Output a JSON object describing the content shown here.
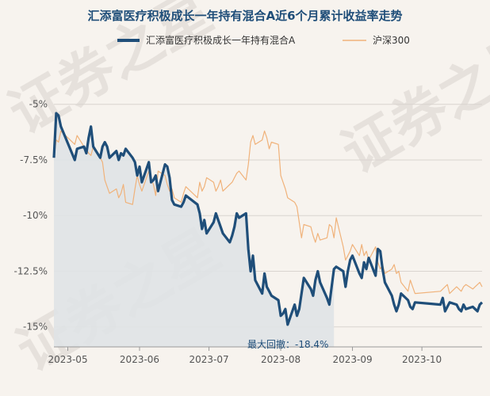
{
  "chart_data": {
    "type": "line",
    "title": "汇添富医疗积极成长一年持有混合A近6个月累计收益率走势",
    "watermark": "证券之星",
    "ylim": [
      -15.9,
      -3.8
    ],
    "yticks": [
      -5,
      -7.5,
      -10,
      -12.5,
      -15
    ],
    "ytick_labels": [
      "-5%",
      "-7.5%",
      "-10%",
      "-12.5%",
      "-15%"
    ],
    "x_range": [
      "2023-04-25",
      "2023-10-27"
    ],
    "xticks": [
      "2023-05-01",
      "2023-06-01",
      "2023-07-01",
      "2023-08-01",
      "2023-09-01",
      "2023-10-01"
    ],
    "xtick_labels": [
      "2023-05",
      "2023-06",
      "2023-07",
      "2023-08",
      "2023-09",
      "2023-10"
    ],
    "baseline": -7.5,
    "legend_position": "top",
    "annotation": {
      "text": "最大回撤：-18.4%"
    },
    "drawdown_range": [
      "2023-04-25",
      "2023-08-24"
    ],
    "series": [
      {
        "name": "汇添富医疗积极成长一年持有混合A",
        "color": "#1f4e79",
        "x": [
          "2023-04-25",
          "2023-04-26",
          "2023-04-27",
          "2023-04-28",
          "2023-05-04",
          "2023-05-05",
          "2023-05-08",
          "2023-05-09",
          "2023-05-10",
          "2023-05-11",
          "2023-05-12",
          "2023-05-15",
          "2023-05-16",
          "2023-05-17",
          "2023-05-18",
          "2023-05-19",
          "2023-05-22",
          "2023-05-23",
          "2023-05-24",
          "2023-05-25",
          "2023-05-26",
          "2023-05-29",
          "2023-05-30",
          "2023-05-31",
          "2023-06-01",
          "2023-06-02",
          "2023-06-05",
          "2023-06-06",
          "2023-06-07",
          "2023-06-08",
          "2023-06-09",
          "2023-06-12",
          "2023-06-13",
          "2023-06-14",
          "2023-06-15",
          "2023-06-16",
          "2023-06-19",
          "2023-06-20",
          "2023-06-21",
          "2023-06-26",
          "2023-06-27",
          "2023-06-28",
          "2023-06-29",
          "2023-06-30",
          "2023-07-03",
          "2023-07-04",
          "2023-07-05",
          "2023-07-06",
          "2023-07-07",
          "2023-07-10",
          "2023-07-11",
          "2023-07-12",
          "2023-07-13",
          "2023-07-14",
          "2023-07-17",
          "2023-07-18",
          "2023-07-19",
          "2023-07-20",
          "2023-07-21",
          "2023-07-24",
          "2023-07-25",
          "2023-07-26",
          "2023-07-27",
          "2023-07-28",
          "2023-07-31",
          "2023-08-01",
          "2023-08-02",
          "2023-08-03",
          "2023-08-04",
          "2023-08-07",
          "2023-08-08",
          "2023-08-09",
          "2023-08-10",
          "2023-08-11",
          "2023-08-14",
          "2023-08-15",
          "2023-08-16",
          "2023-08-17",
          "2023-08-18",
          "2023-08-21",
          "2023-08-22",
          "2023-08-23",
          "2023-08-24",
          "2023-08-25",
          "2023-08-28",
          "2023-08-29",
          "2023-08-30",
          "2023-08-31",
          "2023-09-01",
          "2023-09-04",
          "2023-09-05",
          "2023-09-06",
          "2023-09-07",
          "2023-09-08",
          "2023-09-11",
          "2023-09-12",
          "2023-09-13",
          "2023-09-14",
          "2023-09-15",
          "2023-09-18",
          "2023-09-19",
          "2023-09-20",
          "2023-09-21",
          "2023-09-22",
          "2023-09-25",
          "2023-09-26",
          "2023-09-27",
          "2023-09-28",
          "2023-10-09",
          "2023-10-10",
          "2023-10-11",
          "2023-10-12",
          "2023-10-13",
          "2023-10-16",
          "2023-10-17",
          "2023-10-18",
          "2023-10-19",
          "2023-10-20",
          "2023-10-23",
          "2023-10-24",
          "2023-10-25",
          "2023-10-26",
          "2023-10-27"
        ],
        "values": [
          -7.4,
          -5.4,
          -5.5,
          -6.0,
          -7.5,
          -7.0,
          -6.9,
          -7.2,
          -6.5,
          -6.0,
          -6.9,
          -7.4,
          -6.9,
          -6.7,
          -6.9,
          -7.4,
          -7.1,
          -7.5,
          -7.2,
          -7.3,
          -7.0,
          -7.4,
          -7.6,
          -8.2,
          -7.8,
          -8.5,
          -7.6,
          -8.5,
          -8.4,
          -8.2,
          -8.9,
          -7.7,
          -7.8,
          -8.3,
          -9.3,
          -9.5,
          -9.6,
          -9.4,
          -9.1,
          -9.5,
          -9.9,
          -10.6,
          -10.2,
          -10.8,
          -10.3,
          -9.9,
          -10.2,
          -10.5,
          -10.8,
          -11.2,
          -10.9,
          -10.5,
          -9.9,
          -10.1,
          -9.9,
          -11.5,
          -12.5,
          -11.8,
          -12.9,
          -13.5,
          -12.6,
          -13.2,
          -13.4,
          -13.6,
          -13.8,
          -14.5,
          -14.4,
          -14.2,
          -14.9,
          -14.0,
          -14.5,
          -14.2,
          -13.5,
          -12.8,
          -13.3,
          -13.6,
          -12.9,
          -12.5,
          -13.0,
          -13.7,
          -14.0,
          -13.2,
          -12.4,
          -12.3,
          -12.5,
          -13.2,
          -12.5,
          -12.0,
          -11.8,
          -12.6,
          -12.8,
          -12.1,
          -12.4,
          -11.9,
          -12.7,
          -11.5,
          -11.6,
          -12.4,
          -13.0,
          -13.6,
          -14.0,
          -14.3,
          -14.0,
          -13.5,
          -13.8,
          -14.1,
          -14.2,
          -13.9,
          -14.0,
          -13.7,
          -14.3,
          -14.1,
          -13.9,
          -14.0,
          -14.2,
          -14.3,
          -14.0,
          -14.2,
          -14.1,
          -14.2,
          -14.3,
          -14.0,
          -13.9
        ]
      },
      {
        "name": "沪深300",
        "color": "#f0b27a",
        "x": [
          "2023-04-25",
          "2023-04-26",
          "2023-04-27",
          "2023-04-28",
          "2023-05-04",
          "2023-05-05",
          "2023-05-08",
          "2023-05-09",
          "2023-05-10",
          "2023-05-11",
          "2023-05-12",
          "2023-05-15",
          "2023-05-16",
          "2023-05-17",
          "2023-05-18",
          "2023-05-19",
          "2023-05-22",
          "2023-05-23",
          "2023-05-24",
          "2023-05-25",
          "2023-05-26",
          "2023-05-29",
          "2023-05-30",
          "2023-05-31",
          "2023-06-01",
          "2023-06-02",
          "2023-06-05",
          "2023-06-06",
          "2023-06-07",
          "2023-06-08",
          "2023-06-09",
          "2023-06-12",
          "2023-06-13",
          "2023-06-14",
          "2023-06-15",
          "2023-06-16",
          "2023-06-19",
          "2023-06-20",
          "2023-06-21",
          "2023-06-26",
          "2023-06-27",
          "2023-06-28",
          "2023-06-29",
          "2023-06-30",
          "2023-07-03",
          "2023-07-04",
          "2023-07-05",
          "2023-07-06",
          "2023-07-07",
          "2023-07-10",
          "2023-07-11",
          "2023-07-12",
          "2023-07-13",
          "2023-07-14",
          "2023-07-17",
          "2023-07-18",
          "2023-07-19",
          "2023-07-20",
          "2023-07-21",
          "2023-07-24",
          "2023-07-25",
          "2023-07-26",
          "2023-07-27",
          "2023-07-28",
          "2023-07-31",
          "2023-08-01",
          "2023-08-02",
          "2023-08-03",
          "2023-08-04",
          "2023-08-07",
          "2023-08-08",
          "2023-08-09",
          "2023-08-10",
          "2023-08-11",
          "2023-08-14",
          "2023-08-15",
          "2023-08-16",
          "2023-08-17",
          "2023-08-18",
          "2023-08-21",
          "2023-08-22",
          "2023-08-23",
          "2023-08-24",
          "2023-08-25",
          "2023-08-28",
          "2023-08-29",
          "2023-08-30",
          "2023-08-31",
          "2023-09-01",
          "2023-09-04",
          "2023-09-05",
          "2023-09-06",
          "2023-09-07",
          "2023-09-08",
          "2023-09-11",
          "2023-09-12",
          "2023-09-13",
          "2023-09-14",
          "2023-09-15",
          "2023-09-18",
          "2023-09-19",
          "2023-09-20",
          "2023-09-21",
          "2023-09-22",
          "2023-09-25",
          "2023-09-26",
          "2023-09-27",
          "2023-09-28",
          "2023-10-09",
          "2023-10-10",
          "2023-10-11",
          "2023-10-12",
          "2023-10-13",
          "2023-10-16",
          "2023-10-17",
          "2023-10-18",
          "2023-10-19",
          "2023-10-20",
          "2023-10-23",
          "2023-10-24",
          "2023-10-25",
          "2023-10-26",
          "2023-10-27"
        ],
        "values": [
          -7.4,
          -6.6,
          -6.7,
          -6.2,
          -6.8,
          -6.4,
          -6.9,
          -7.0,
          -7.2,
          -7.3,
          -6.9,
          -7.4,
          -7.6,
          -8.4,
          -8.7,
          -9.0,
          -8.8,
          -9.2,
          -9.0,
          -8.6,
          -9.4,
          -9.5,
          -8.8,
          -8.2,
          -8.6,
          -8.9,
          -8.0,
          -8.4,
          -8.6,
          -9.1,
          -8.0,
          -8.2,
          -8.6,
          -8.9,
          -8.8,
          -9.2,
          -9.4,
          -9.0,
          -8.7,
          -9.2,
          -8.5,
          -8.9,
          -8.7,
          -8.3,
          -8.5,
          -8.9,
          -8.7,
          -8.4,
          -8.9,
          -8.6,
          -8.5,
          -8.3,
          -8.1,
          -8.0,
          -8.4,
          -7.7,
          -6.7,
          -6.4,
          -6.8,
          -6.6,
          -6.2,
          -6.5,
          -7.0,
          -6.7,
          -6.8,
          -8.2,
          -8.5,
          -8.8,
          -9.2,
          -9.4,
          -9.6,
          -10.3,
          -11.0,
          -10.4,
          -10.5,
          -10.9,
          -11.2,
          -10.8,
          -11.1,
          -11.0,
          -10.4,
          -10.5,
          -11.0,
          -10.1,
          -11.4,
          -12.0,
          -11.8,
          -11.6,
          -11.3,
          -11.8,
          -11.3,
          -11.8,
          -11.6,
          -12.0,
          -11.4,
          -12.1,
          -12.4,
          -12.2,
          -12.6,
          -12.4,
          -12.2,
          -12.6,
          -12.5,
          -13.0,
          -13.4,
          -12.9,
          -13.2,
          -13.5,
          -13.4,
          -13.3,
          -13.2,
          -13.1,
          -13.5,
          -13.2,
          -13.3,
          -13.4,
          -13.2,
          -13.1,
          -13.3,
          -13.2,
          -13.1,
          -13.0,
          -13.2
        ]
      }
    ]
  }
}
